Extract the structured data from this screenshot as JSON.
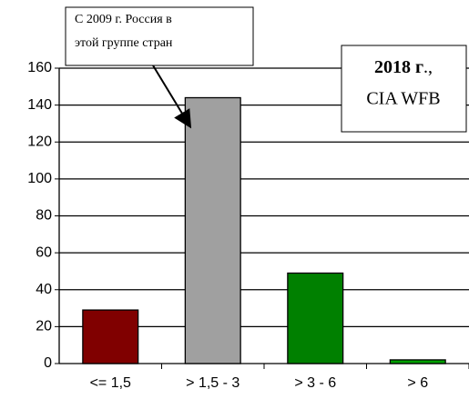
{
  "chart_data": {
    "type": "bar",
    "categories": [
      "<= 1,5",
      "> 1,5 - 3",
      "> 3 - 6",
      "> 6"
    ],
    "values": [
      29,
      144,
      49,
      2
    ],
    "colors": [
      "#800000",
      "#a0a0a0",
      "#008000",
      "#00a000"
    ],
    "ylim": [
      0,
      160
    ],
    "yticks": [
      0,
      20,
      40,
      60,
      80,
      100,
      120,
      140,
      160
    ],
    "grid": true,
    "annotations": [
      {
        "lines": [
          "С 2009 г. Россия в",
          "этой группе стран"
        ]
      },
      {
        "bold": "2018 г",
        "rest": "., ",
        "line2": "CIA WFB"
      }
    ]
  }
}
